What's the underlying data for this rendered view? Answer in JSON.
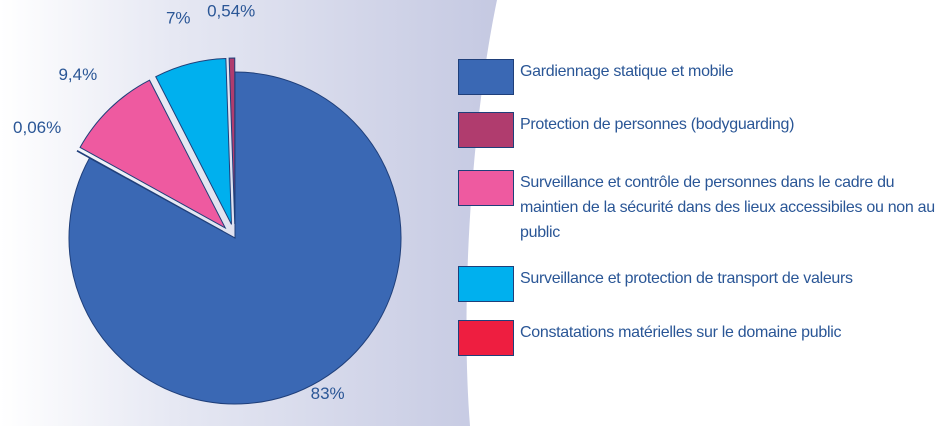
{
  "chart_data": {
    "type": "pie",
    "categories": [
      "Gardiennage statique et mobile",
      "Protection de personnes (bodyguarding)",
      "Surveillance et contrôle de personnes dans le cadre du maintien de la sécurité dans des lieux accessibiles ou non au public",
      "Surveillance et protection de transport de valeurs",
      "Constatations matérielles sur le domaine public"
    ],
    "values": [
      83,
      0.54,
      9.4,
      7,
      0.06
    ],
    "value_labels": [
      "83%",
      "0,54%",
      "9,4%",
      "7%",
      "0,06%"
    ],
    "colors": [
      "#3a68b4",
      "#b03c6e",
      "#ee5aa0",
      "#00b0ee",
      "#ee1e40"
    ]
  }
}
